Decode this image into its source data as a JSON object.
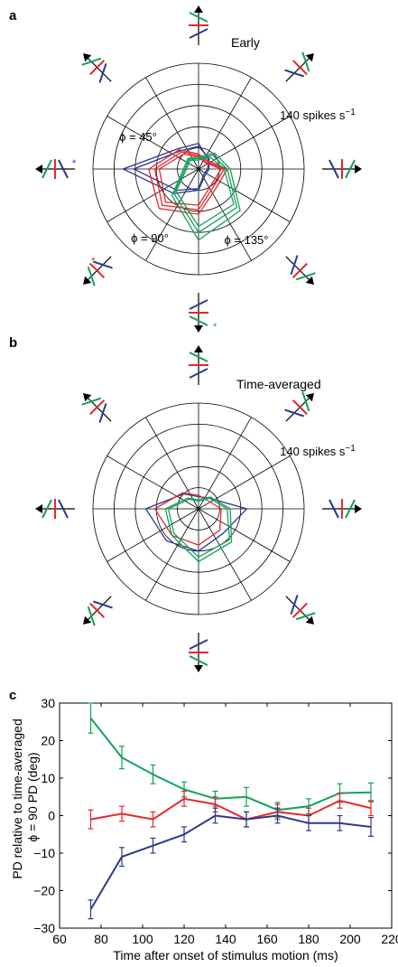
{
  "colors": {
    "blue": "#2b3990",
    "red": "#e8262a",
    "green": "#14a05a",
    "axis": "#000000",
    "grid": "#000000"
  },
  "chart_data": [
    {
      "type": "polar",
      "panel_label": "a",
      "title": "Early",
      "scale_label": "140 spikes s",
      "scale_unit_superscript": "−1",
      "r_max": 140,
      "rings": 5,
      "spokes_deg": [
        0,
        30,
        60,
        90,
        120,
        150,
        180,
        210,
        240,
        270,
        300,
        330
      ],
      "directions_deg": [
        0,
        45,
        90,
        135,
        180,
        225,
        270,
        315
      ],
      "series": [
        {
          "name": "ϕ = 45°",
          "color": "blue",
          "values": [
            [
              14,
              18,
              34,
              38,
              100,
              46,
              28,
              12
            ],
            [
              12,
              20,
              30,
              34,
              86,
              40,
              26,
              10
            ]
          ]
        },
        {
          "name": "ϕ = 90°",
          "color": "red",
          "values": [
            [
              38,
              16,
              20,
              36,
              66,
              74,
              60,
              34
            ],
            [
              34,
              14,
              18,
              32,
              58,
              68,
              54,
              30
            ],
            [
              30,
              12,
              16,
              28,
              52,
              62,
              48,
              26
            ]
          ]
        },
        {
          "name": "ϕ = 135°",
          "color": "green",
          "values": [
            [
              42,
              30,
              16,
              20,
              20,
              50,
              94,
              78
            ],
            [
              38,
              26,
              14,
              18,
              18,
              46,
              84,
              72
            ],
            [
              34,
              22,
              12,
              16,
              16,
              42,
              76,
              66
            ]
          ]
        }
      ],
      "annotations": [
        "*",
        "*",
        "*"
      ]
    },
    {
      "type": "polar",
      "panel_label": "b",
      "title": "Time-averaged",
      "scale_label": "140 spikes s",
      "scale_unit_superscript": "−1",
      "r_max": 140,
      "rings": 5,
      "spokes_deg": [
        0,
        30,
        60,
        90,
        120,
        150,
        180,
        210,
        240,
        270,
        300,
        330
      ],
      "directions_deg": [
        0,
        45,
        90,
        135,
        180,
        225,
        270,
        315
      ],
      "series": [
        {
          "name": "",
          "color": "blue",
          "values": [
            [
              64,
              20,
              16,
              28,
              70,
              60,
              56,
              46
            ]
          ]
        },
        {
          "name": "",
          "color": "red",
          "values": [
            [
              30,
              16,
              18,
              30,
              58,
              50,
              48,
              40
            ]
          ]
        },
        {
          "name": "",
          "color": "green",
          "values": [
            [
              42,
              22,
              12,
              20,
              44,
              50,
              70,
              62
            ],
            [
              38,
              20,
              10,
              18,
              40,
              46,
              64,
              58
            ]
          ]
        }
      ]
    },
    {
      "type": "line",
      "panel_label": "c",
      "xlabel": "Time after onset of stimulus motion (ms)",
      "ylabel_line1": "PD relative to time-averaged",
      "ylabel_line2": "ϕ = 90 PD (deg)",
      "xlim": [
        60,
        220
      ],
      "ylim": [
        -30,
        30
      ],
      "xticks": [
        60,
        80,
        100,
        120,
        140,
        160,
        180,
        200,
        220
      ],
      "yticks": [
        30,
        20,
        10,
        0,
        -10,
        -20,
        -30
      ],
      "x": [
        75,
        90,
        105,
        120,
        135,
        150,
        165,
        180,
        195,
        210
      ],
      "series": [
        {
          "name": "",
          "color": "green",
          "values": [
            26,
            15.5,
            11,
            7,
            4.5,
            5,
            1.5,
            2.5,
            6,
            6.2
          ],
          "err": [
            4,
            3,
            2.5,
            2,
            2,
            2.5,
            2,
            2,
            2.5,
            2.5
          ]
        },
        {
          "name": "",
          "color": "red",
          "values": [
            -1,
            0.5,
            -1,
            4.5,
            3,
            -1,
            1,
            0,
            4,
            2
          ],
          "err": [
            2.5,
            2,
            2,
            2,
            2,
            2,
            2,
            2,
            2,
            2
          ]
        },
        {
          "name": "",
          "color": "blue",
          "values": [
            -25,
            -11,
            -8,
            -5,
            0,
            -1,
            0,
            -2,
            -2,
            -3
          ],
          "err": [
            2.5,
            2.5,
            2,
            2,
            2,
            2,
            2,
            2,
            2,
            2.5
          ]
        }
      ]
    }
  ]
}
